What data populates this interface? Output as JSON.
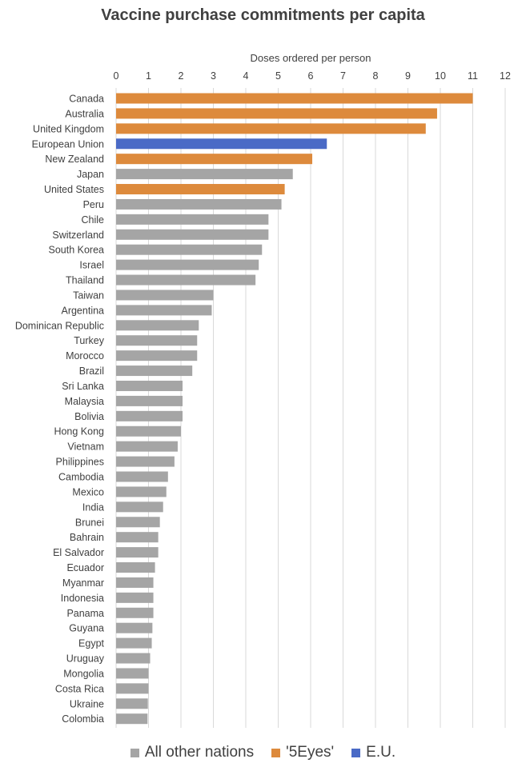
{
  "chart_data": {
    "type": "bar",
    "orientation": "horizontal",
    "title": "Vaccine purchase commitments per capita",
    "xlabel": "Doses ordered per person",
    "xlim": [
      0,
      12
    ],
    "xticks": [
      "0",
      "1",
      "2",
      "3",
      "4",
      "5",
      "6",
      "7",
      "8",
      "9",
      "10",
      "11",
      "12"
    ],
    "grid": true,
    "legend_position": "bottom",
    "groups": [
      {
        "name": "All other nations",
        "color": "#a5a5a5"
      },
      {
        "name": "'5Eyes'",
        "color": "#dd8a3c"
      },
      {
        "name": "E.U.",
        "color": "#4a6ac6"
      }
    ],
    "bars": [
      {
        "category": "Canada",
        "value": 11.0,
        "group": "'5Eyes'"
      },
      {
        "category": "Australia",
        "value": 9.9,
        "group": "'5Eyes'"
      },
      {
        "category": "United Kingdom",
        "value": 9.55,
        "group": "'5Eyes'"
      },
      {
        "category": "European Union",
        "value": 6.5,
        "group": "E.U."
      },
      {
        "category": "New Zealand",
        "value": 6.05,
        "group": "'5Eyes'"
      },
      {
        "category": "Japan",
        "value": 5.45,
        "group": "All other nations"
      },
      {
        "category": "United States",
        "value": 5.2,
        "group": "'5Eyes'"
      },
      {
        "category": "Peru",
        "value": 5.1,
        "group": "All other nations"
      },
      {
        "category": "Chile",
        "value": 4.7,
        "group": "All other nations"
      },
      {
        "category": "Switzerland",
        "value": 4.7,
        "group": "All other nations"
      },
      {
        "category": "South Korea",
        "value": 4.5,
        "group": "All other nations"
      },
      {
        "category": "Israel",
        "value": 4.4,
        "group": "All other nations"
      },
      {
        "category": "Thailand",
        "value": 4.3,
        "group": "All other nations"
      },
      {
        "category": "Taiwan",
        "value": 3.0,
        "group": "All other nations"
      },
      {
        "category": "Argentina",
        "value": 2.95,
        "group": "All other nations"
      },
      {
        "category": "Dominican Republic",
        "value": 2.55,
        "group": "All other nations"
      },
      {
        "category": "Turkey",
        "value": 2.5,
        "group": "All other nations"
      },
      {
        "category": "Morocco",
        "value": 2.5,
        "group": "All other nations"
      },
      {
        "category": "Brazil",
        "value": 2.35,
        "group": "All other nations"
      },
      {
        "category": "Sri Lanka",
        "value": 2.05,
        "group": "All other nations"
      },
      {
        "category": "Malaysia",
        "value": 2.05,
        "group": "All other nations"
      },
      {
        "category": "Bolivia",
        "value": 2.05,
        "group": "All other nations"
      },
      {
        "category": "Hong Kong",
        "value": 2.0,
        "group": "All other nations"
      },
      {
        "category": "Vietnam",
        "value": 1.9,
        "group": "All other nations"
      },
      {
        "category": "Philippines",
        "value": 1.8,
        "group": "All other nations"
      },
      {
        "category": "Cambodia",
        "value": 1.6,
        "group": "All other nations"
      },
      {
        "category": "Mexico",
        "value": 1.55,
        "group": "All other nations"
      },
      {
        "category": "India",
        "value": 1.45,
        "group": "All other nations"
      },
      {
        "category": "Brunei",
        "value": 1.35,
        "group": "All other nations"
      },
      {
        "category": "Bahrain",
        "value": 1.3,
        "group": "All other nations"
      },
      {
        "category": "El Salvador",
        "value": 1.3,
        "group": "All other nations"
      },
      {
        "category": "Ecuador",
        "value": 1.2,
        "group": "All other nations"
      },
      {
        "category": "Myanmar",
        "value": 1.15,
        "group": "All other nations"
      },
      {
        "category": "Indonesia",
        "value": 1.15,
        "group": "All other nations"
      },
      {
        "category": "Panama",
        "value": 1.15,
        "group": "All other nations"
      },
      {
        "category": "Guyana",
        "value": 1.12,
        "group": "All other nations"
      },
      {
        "category": "Egypt",
        "value": 1.1,
        "group": "All other nations"
      },
      {
        "category": "Uruguay",
        "value": 1.05,
        "group": "All other nations"
      },
      {
        "category": "Mongolia",
        "value": 1.0,
        "group": "All other nations"
      },
      {
        "category": "Costa Rica",
        "value": 1.0,
        "group": "All other nations"
      },
      {
        "category": "Ukraine",
        "value": 0.98,
        "group": "All other nations"
      },
      {
        "category": "Colombia",
        "value": 0.97,
        "group": "All other nations"
      }
    ]
  }
}
